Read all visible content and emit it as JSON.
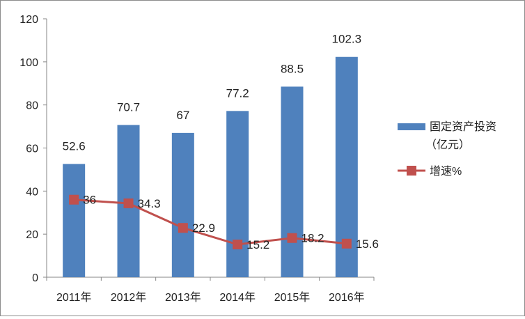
{
  "chart_data": {
    "type": "bar",
    "categories": [
      "2011年",
      "2012年",
      "2013年",
      "2014年",
      "2015年",
      "2016年"
    ],
    "series": [
      {
        "name": "固定资产投资（亿元）",
        "type": "bar",
        "color": "#4f81bd",
        "values": [
          52.6,
          70.7,
          67,
          77.2,
          88.5,
          102.3
        ],
        "labels": [
          "52.6",
          "70.7",
          "67",
          "77.2",
          "88.5",
          "102.3"
        ]
      },
      {
        "name": "增速%",
        "type": "line",
        "color": "#c0504d",
        "values": [
          36,
          34.3,
          22.9,
          15.2,
          18.2,
          15.6
        ],
        "labels": [
          "36",
          "34.3",
          "22.9",
          "15.2",
          "18.2",
          "15.6"
        ]
      }
    ],
    "yticks": [
      "0",
      "20",
      "40",
      "60",
      "80",
      "100",
      "120"
    ],
    "ylim": [
      0,
      120
    ],
    "grid": false,
    "legend_position": "right",
    "legend": {
      "bar_line1": "固定资产投资",
      "bar_line2": "（亿元）",
      "line": "增速%"
    }
  }
}
